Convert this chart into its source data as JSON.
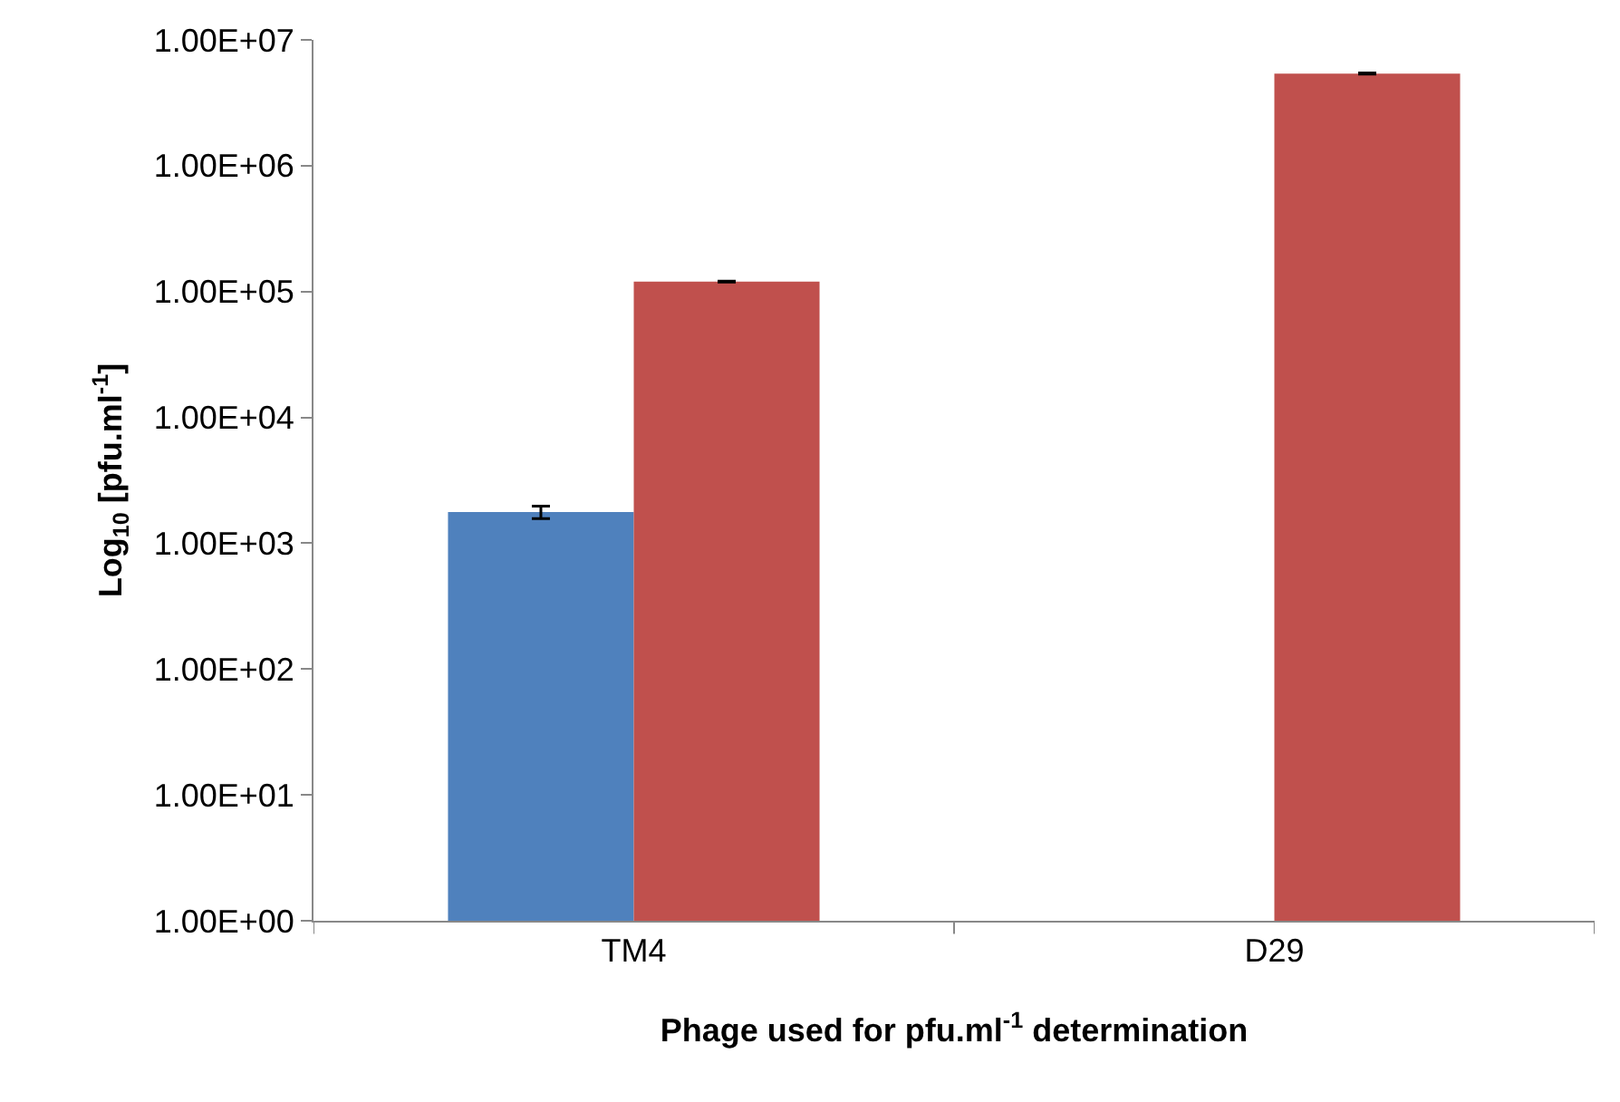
{
  "chart_data": {
    "type": "bar",
    "xlabel": "Phage used for pfu.ml$^{-1}$ determination",
    "ylabel": "Log$_{10}$ [pfu.ml$^{-1}$]",
    "categories": [
      "TM4",
      "D29"
    ],
    "series": [
      {
        "color": "#4f81bd",
        "values": [
          1770,
          null
        ],
        "errors": [
          200,
          null
        ]
      },
      {
        "color": "#c0504d",
        "values": [
          120000,
          5400000
        ],
        "errors": [
          1000,
          50000
        ]
      }
    ],
    "log": true,
    "ylim": [
      1,
      10000000
    ],
    "yticks": [
      {
        "value": 1,
        "label": "1.00E+00"
      },
      {
        "value": 10,
        "label": "1.00E+01"
      },
      {
        "value": 100,
        "label": "1.00E+02"
      },
      {
        "value": 1000,
        "label": "1.00E+03"
      },
      {
        "value": 10000,
        "label": "1.00E+04"
      },
      {
        "value": 100000,
        "label": "1.00E+05"
      },
      {
        "value": 1000000,
        "label": "1.00E+06"
      },
      {
        "value": 10000000,
        "label": "1.00E+07"
      }
    ],
    "tick_labels": "xy"
  }
}
